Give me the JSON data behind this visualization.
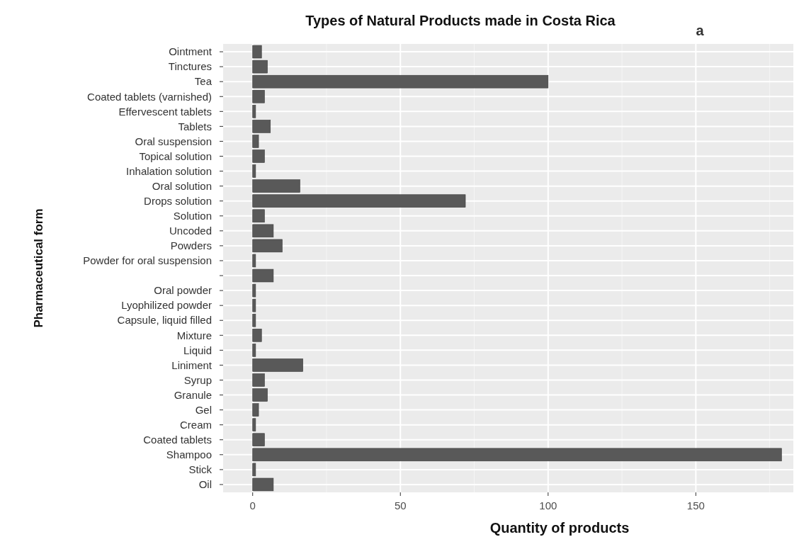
{
  "chart_data": {
    "type": "bar",
    "orientation": "horizontal",
    "title": "Types of Natural Products made in Costa Rica",
    "xlabel": "Quantity of products",
    "ylabel": "Pharmaceutical form",
    "annotations": [
      "a"
    ],
    "categories": [
      "Ointment",
      "Tinctures",
      "Tea",
      "Coated tablets (varnished)",
      "Effervescent tablets",
      "Tablets",
      "Oral suspension",
      "Topical solution",
      "Inhalation solution",
      "Oral solution",
      "Drops solution",
      "Solution",
      "Uncoded",
      "Powders",
      "Powder for oral suspension",
      null,
      "Oral powder",
      "Lyophilized powder",
      "Capsule, liquid filled",
      "Mixture",
      "Liquid",
      "Liniment",
      "Syrup",
      "Granule",
      "Gel",
      "Cream",
      "Coated tablets",
      "Shampoo",
      "Stick",
      "Oil"
    ],
    "values": [
      3,
      5,
      100,
      4,
      1,
      6,
      2,
      4,
      1,
      16,
      72,
      4,
      7,
      10,
      1,
      7,
      1,
      1,
      1,
      3,
      1,
      17,
      4,
      5,
      2,
      1,
      4,
      179,
      1,
      7
    ],
    "color": "#595959",
    "xlim": [
      -10,
      183
    ],
    "xticks": [
      0,
      50,
      100,
      150
    ],
    "grid": true
  }
}
